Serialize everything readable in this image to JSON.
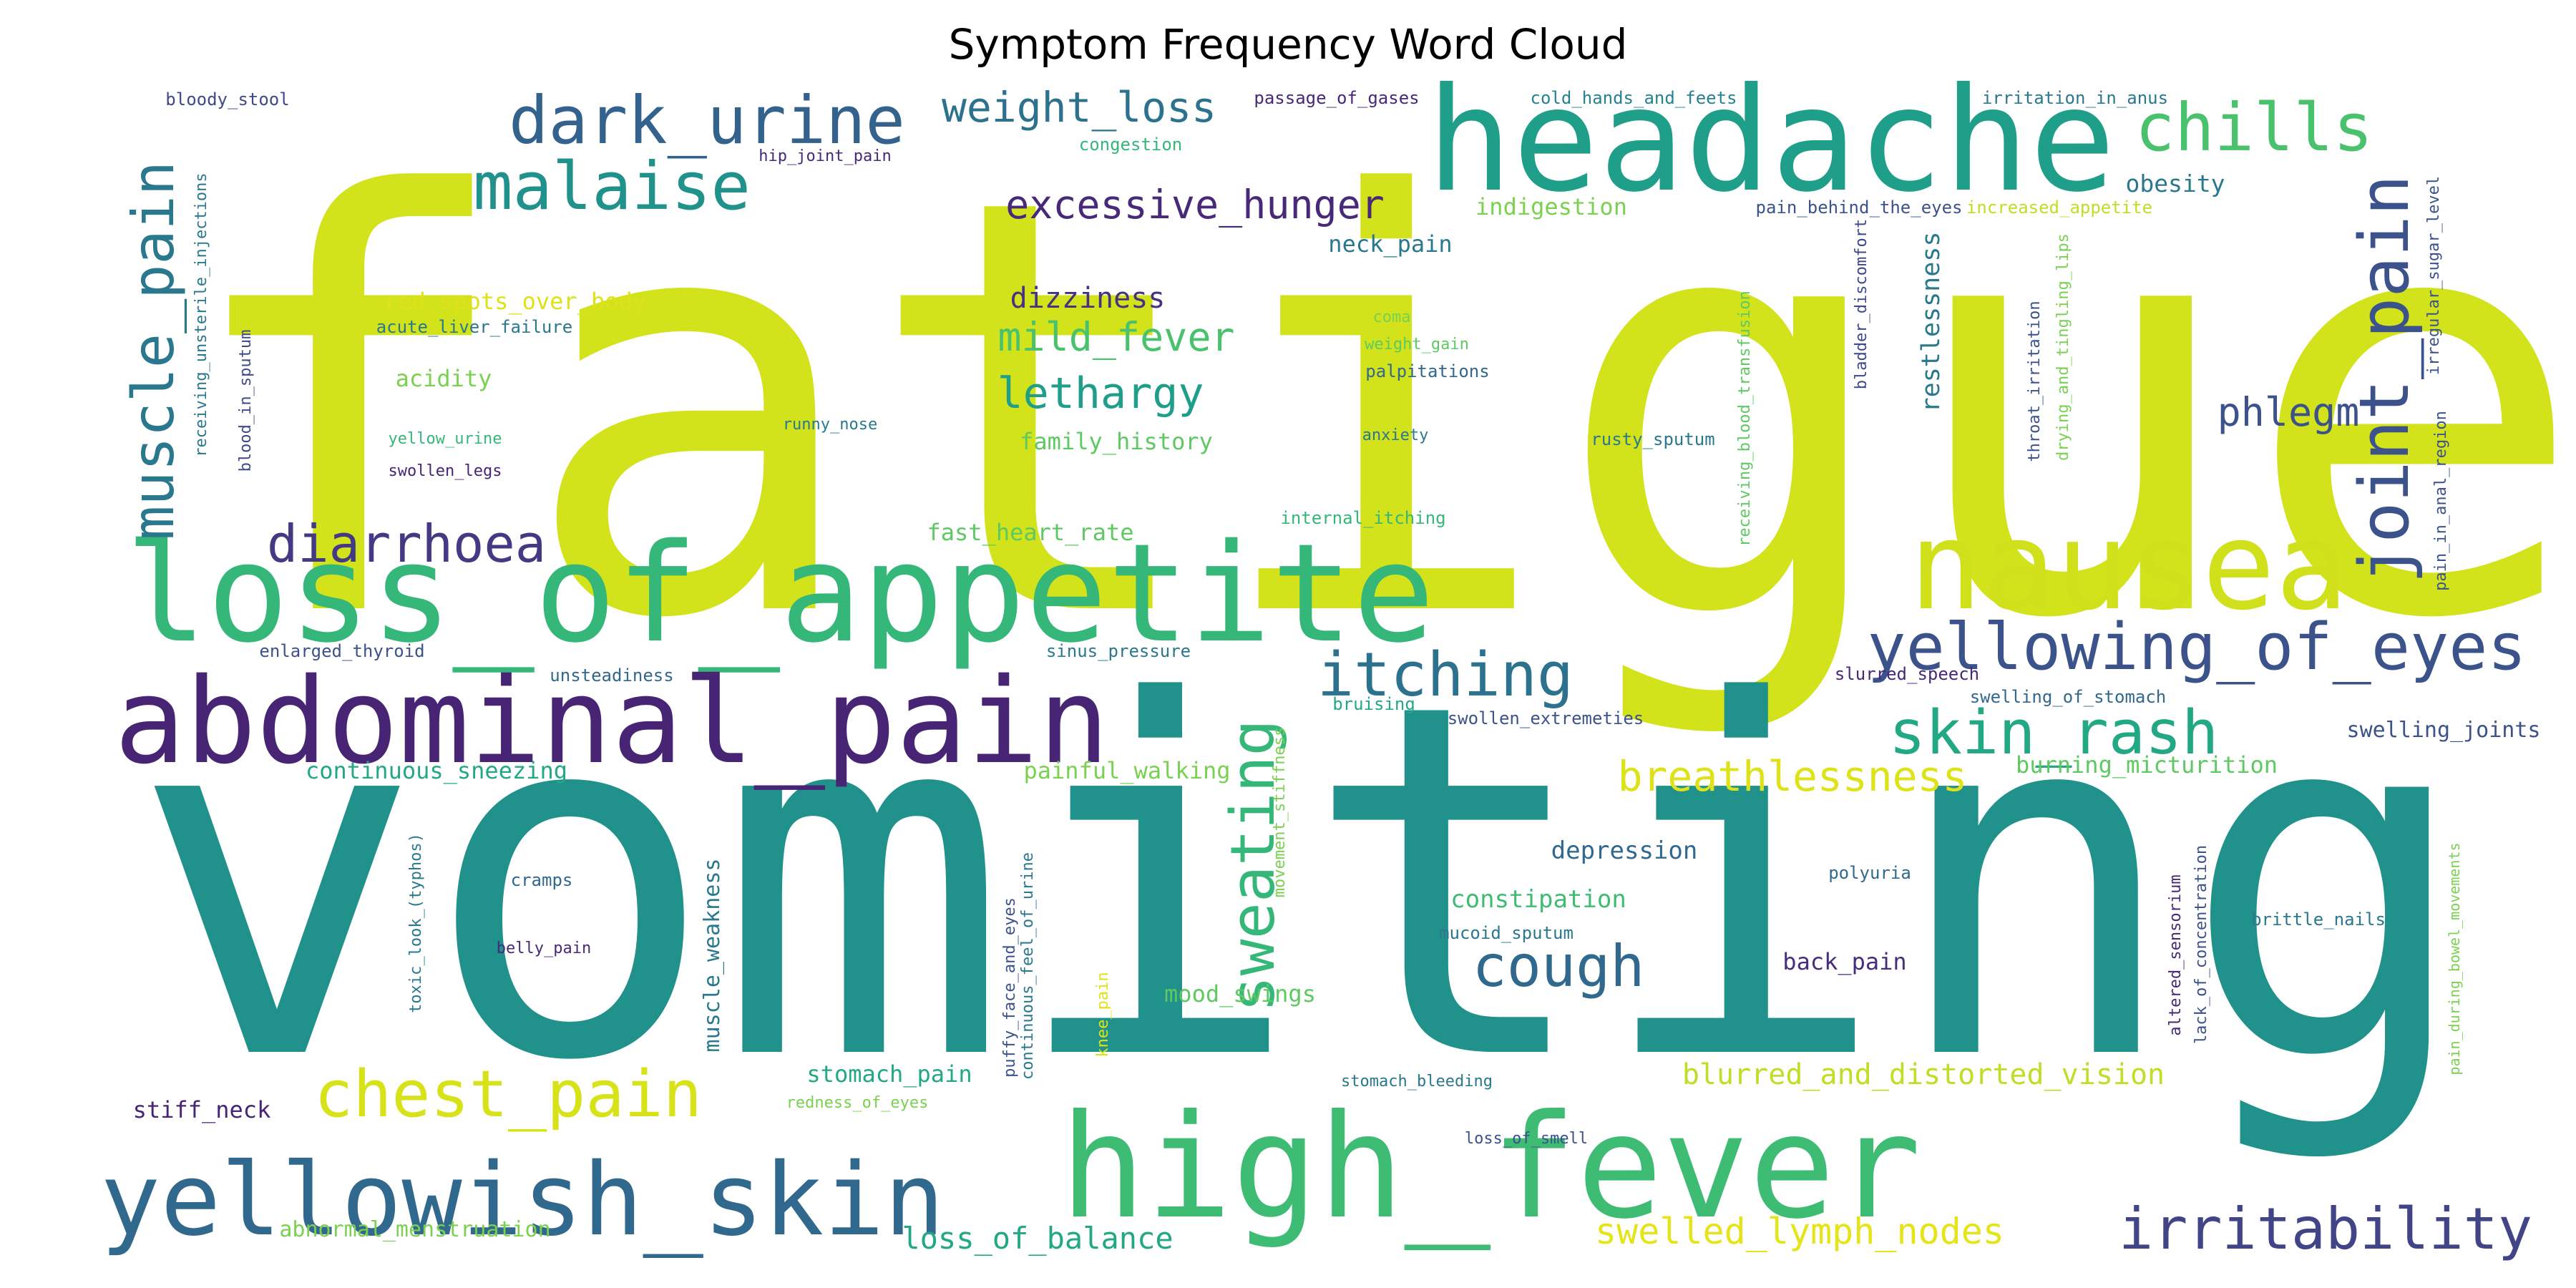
{
  "chart_data": {
    "type": "wordcloud",
    "title": "Symptom Frequency Word Cloud",
    "words": [
      {
        "text": "fatigue",
        "color": "#d2e21b"
      },
      {
        "text": "vomiting",
        "color": "#21918c"
      },
      {
        "text": "high_fever",
        "color": "#3fbc73"
      },
      {
        "text": "loss_of_appetite",
        "color": "#35b779"
      },
      {
        "text": "abdominal_pain",
        "color": "#482475"
      },
      {
        "text": "headache",
        "color": "#1f9e89"
      },
      {
        "text": "nausea",
        "color": "#d0e11c"
      },
      {
        "text": "yellowish_skin",
        "color": "#31688e"
      },
      {
        "text": "dark_urine",
        "color": "#33638d"
      },
      {
        "text": "malaise",
        "color": "#21918c"
      },
      {
        "text": "chills",
        "color": "#4ac16d"
      },
      {
        "text": "joint_pain",
        "color": "#3b528b"
      },
      {
        "text": "chest_pain",
        "color": "#d8e219"
      },
      {
        "text": "yellowing_of_eyes",
        "color": "#3b528b"
      },
      {
        "text": "irritability",
        "color": "#414487"
      },
      {
        "text": "itching",
        "color": "#2c728e"
      },
      {
        "text": "skin_rash",
        "color": "#22a884"
      },
      {
        "text": "sweating",
        "color": "#35b779"
      },
      {
        "text": "cough",
        "color": "#31688e"
      },
      {
        "text": "muscle_pain",
        "color": "#2a788e"
      },
      {
        "text": "diarrhoea",
        "color": "#443983"
      },
      {
        "text": "breathlessness",
        "color": "#dde318"
      },
      {
        "text": "excessive_hunger",
        "color": "#482878"
      },
      {
        "text": "weight_loss",
        "color": "#2c728e"
      },
      {
        "text": "lethargy",
        "color": "#1f9e89"
      },
      {
        "text": "mild_fever",
        "color": "#4ac16d"
      },
      {
        "text": "phlegm",
        "color": "#3b528b"
      },
      {
        "text": "swelled_lymph_nodes",
        "color": "#e5e419"
      },
      {
        "text": "loss_of_balance",
        "color": "#22a884"
      },
      {
        "text": "blurred_and_distorted_vision",
        "color": "#bddf26"
      },
      {
        "text": "dizziness",
        "color": "#46327e"
      },
      {
        "text": "restlessness",
        "color": "#2a788e"
      },
      {
        "text": "depression",
        "color": "#31688e"
      },
      {
        "text": "constipation",
        "color": "#3fbc73"
      },
      {
        "text": "back_pain",
        "color": "#472d7b"
      },
      {
        "text": "indigestion",
        "color": "#7ad151"
      },
      {
        "text": "neck_pain",
        "color": "#2a788e"
      },
      {
        "text": "obesity",
        "color": "#2a788e"
      },
      {
        "text": "acidity",
        "color": "#7ad151"
      },
      {
        "text": "red_spots_over_body",
        "color": "#dde318"
      },
      {
        "text": "family_history",
        "color": "#5ec962"
      },
      {
        "text": "fast_heart_rate",
        "color": "#5ec962"
      },
      {
        "text": "stomach_pain",
        "color": "#22a884"
      },
      {
        "text": "mood_swings",
        "color": "#5ec962"
      },
      {
        "text": "stiff_neck",
        "color": "#482475"
      },
      {
        "text": "abnormal_menstruation",
        "color": "#7ad151"
      },
      {
        "text": "continuous_sneezing",
        "color": "#22a884"
      },
      {
        "text": "painful_walking",
        "color": "#7ad151"
      },
      {
        "text": "burning_micturition",
        "color": "#5ec962"
      },
      {
        "text": "swelling_joints",
        "color": "#3b528b"
      },
      {
        "text": "muscle_weakness",
        "color": "#2a788e"
      },
      {
        "text": "bloody_stool",
        "color": "#3e4989"
      },
      {
        "text": "passage_of_gases",
        "color": "#482878"
      },
      {
        "text": "cold_hands_and_feets",
        "color": "#26828e"
      },
      {
        "text": "irritation_in_anus",
        "color": "#2a788e"
      },
      {
        "text": "hip_joint_pain",
        "color": "#482878"
      },
      {
        "text": "congestion",
        "color": "#35b779"
      },
      {
        "text": "pain_behind_the_eyes",
        "color": "#3b528b"
      },
      {
        "text": "increased_appetite",
        "color": "#bddf26"
      },
      {
        "text": "receiving_unsterile_injections",
        "color": "#2a788e"
      },
      {
        "text": "blood_in_sputum",
        "color": "#3e4989"
      },
      {
        "text": "acute_liver_failure",
        "color": "#2a788e"
      },
      {
        "text": "yellow_urine",
        "color": "#35b779"
      },
      {
        "text": "swollen_legs",
        "color": "#482475"
      },
      {
        "text": "runny_nose",
        "color": "#2a788e"
      },
      {
        "text": "coma",
        "color": "#7ad151"
      },
      {
        "text": "weight_gain",
        "color": "#5ec962"
      },
      {
        "text": "palpitations",
        "color": "#31688e"
      },
      {
        "text": "anxiety",
        "color": "#2a788e"
      },
      {
        "text": "internal_itching",
        "color": "#35b779"
      },
      {
        "text": "enlarged_thyroid",
        "color": "#3b528b"
      },
      {
        "text": "unsteadiness",
        "color": "#31688e"
      },
      {
        "text": "sinus_pressure",
        "color": "#2a788e"
      },
      {
        "text": "bruising",
        "color": "#22a884"
      },
      {
        "text": "swollen_extremeties",
        "color": "#3b528b"
      },
      {
        "text": "slurred_speech",
        "color": "#482878"
      },
      {
        "text": "swelling_of_stomach",
        "color": "#31688e"
      },
      {
        "text": "brittle_nails",
        "color": "#2a788e"
      },
      {
        "text": "receiving_blood_transfusion",
        "color": "#5ec962"
      },
      {
        "text": "bladder_discomfort",
        "color": "#3e4989"
      },
      {
        "text": "rusty_sputum",
        "color": "#2a788e"
      },
      {
        "text": "throat_irritation",
        "color": "#3b528b"
      },
      {
        "text": "drying_and_tingling_lips",
        "color": "#7ad151"
      },
      {
        "text": "irregular_sugar_level",
        "color": "#3b528b"
      },
      {
        "text": "pain_in_anal_region",
        "color": "#3b528b"
      },
      {
        "text": "toxic_look_(typhos)",
        "color": "#2a788e"
      },
      {
        "text": "cramps",
        "color": "#31688e"
      },
      {
        "text": "belly_pain",
        "color": "#482878"
      },
      {
        "text": "puffy_face_and_eyes",
        "color": "#3b528b"
      },
      {
        "text": "continuous_feel_of_urine",
        "color": "#2a788e"
      },
      {
        "text": "knee_pain",
        "color": "#dde318"
      },
      {
        "text": "movement_stiffness",
        "color": "#7ad151"
      },
      {
        "text": "mucoid_sputum",
        "color": "#2a788e"
      },
      {
        "text": "polyuria",
        "color": "#31688e"
      },
      {
        "text": "altered_sensorium",
        "color": "#482878"
      },
      {
        "text": "lack_of_concentration",
        "color": "#3b528b"
      },
      {
        "text": "pain_during_bowel_movements",
        "color": "#7ad151"
      },
      {
        "text": "redness_of_eyes",
        "color": "#7ad151"
      },
      {
        "text": "stomach_bleeding",
        "color": "#2a788e"
      },
      {
        "text": "loss_of_smell",
        "color": "#3b528b"
      }
    ]
  }
}
